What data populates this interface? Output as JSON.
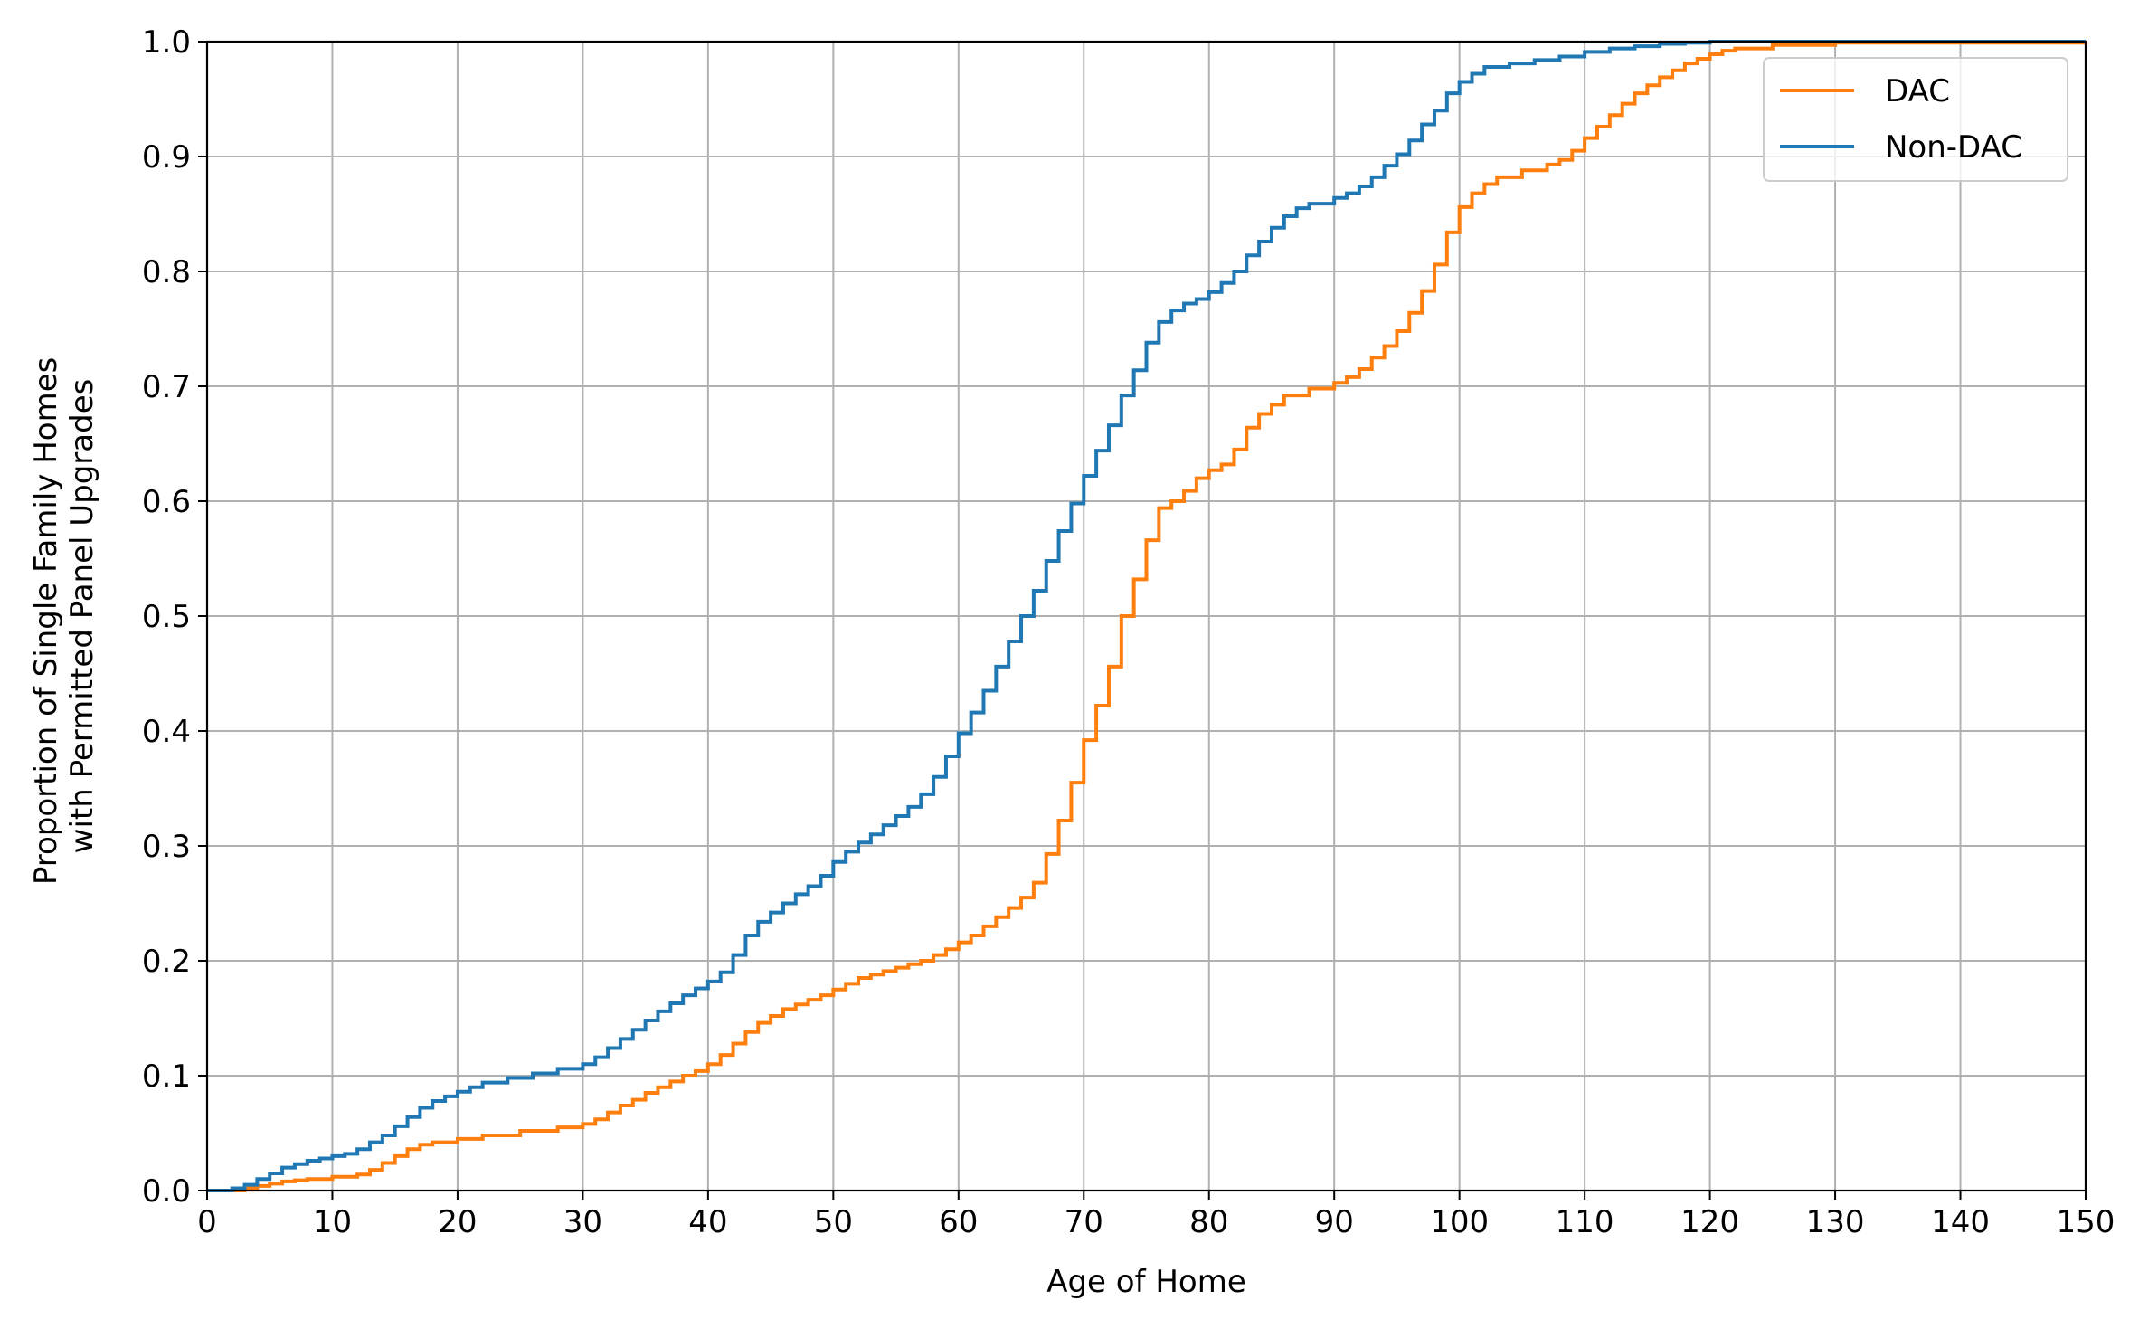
{
  "chart_data": {
    "type": "line",
    "step": true,
    "title": "",
    "xlabel": "Age of Home",
    "ylabel_lines": [
      "Proportion of Single Family Homes",
      "with Permitted Panel Upgrades"
    ],
    "xlim": [
      0,
      150
    ],
    "ylim": [
      0,
      1
    ],
    "xticks": [
      0,
      10,
      20,
      30,
      40,
      50,
      60,
      70,
      80,
      90,
      100,
      110,
      120,
      130,
      140,
      150
    ],
    "yticks": [
      0.0,
      0.1,
      0.2,
      0.3,
      0.4,
      0.5,
      0.6,
      0.7,
      0.8,
      0.9,
      1.0
    ],
    "xtick_labels": [
      "0",
      "10",
      "20",
      "30",
      "40",
      "50",
      "60",
      "70",
      "80",
      "90",
      "100",
      "110",
      "120",
      "130",
      "140",
      "150"
    ],
    "ytick_labels": [
      "0.0",
      "0.1",
      "0.2",
      "0.3",
      "0.4",
      "0.5",
      "0.6",
      "0.7",
      "0.8",
      "0.9",
      "1.0"
    ],
    "grid": true,
    "legend_position": "top-right",
    "series": [
      {
        "name": "DAC",
        "color": "#ff7f0e",
        "x": [
          0,
          3,
          4,
          5,
          6,
          7,
          8,
          10,
          12,
          13,
          14,
          15,
          16,
          17,
          18,
          20,
          22,
          25,
          28,
          30,
          31,
          32,
          33,
          34,
          35,
          36,
          37,
          38,
          39,
          40,
          41,
          42,
          43,
          44,
          45,
          46,
          47,
          48,
          49,
          50,
          51,
          52,
          53,
          54,
          55,
          56,
          57,
          58,
          59,
          60,
          61,
          62,
          63,
          64,
          65,
          66,
          67,
          68,
          69,
          70,
          71,
          72,
          73,
          74,
          75,
          76,
          77,
          78,
          79,
          80,
          81,
          82,
          83,
          84,
          85,
          86,
          88,
          90,
          91,
          92,
          93,
          94,
          95,
          96,
          97,
          98,
          99,
          100,
          101,
          102,
          103,
          105,
          107,
          108,
          109,
          110,
          111,
          112,
          113,
          114,
          115,
          116,
          117,
          118,
          119,
          120,
          121,
          122,
          125,
          130,
          150
        ],
        "y": [
          0.0,
          0.002,
          0.004,
          0.006,
          0.008,
          0.009,
          0.01,
          0.012,
          0.014,
          0.018,
          0.024,
          0.03,
          0.036,
          0.04,
          0.042,
          0.045,
          0.048,
          0.052,
          0.055,
          0.058,
          0.062,
          0.068,
          0.074,
          0.079,
          0.085,
          0.09,
          0.095,
          0.1,
          0.104,
          0.11,
          0.118,
          0.128,
          0.138,
          0.146,
          0.152,
          0.158,
          0.162,
          0.166,
          0.17,
          0.175,
          0.18,
          0.185,
          0.188,
          0.191,
          0.194,
          0.197,
          0.2,
          0.205,
          0.21,
          0.216,
          0.222,
          0.23,
          0.238,
          0.246,
          0.255,
          0.268,
          0.293,
          0.322,
          0.355,
          0.392,
          0.422,
          0.456,
          0.5,
          0.532,
          0.566,
          0.594,
          0.6,
          0.609,
          0.62,
          0.627,
          0.632,
          0.645,
          0.664,
          0.676,
          0.684,
          0.692,
          0.698,
          0.703,
          0.708,
          0.715,
          0.725,
          0.735,
          0.748,
          0.764,
          0.783,
          0.806,
          0.834,
          0.856,
          0.868,
          0.876,
          0.882,
          0.888,
          0.893,
          0.897,
          0.905,
          0.916,
          0.926,
          0.936,
          0.946,
          0.955,
          0.962,
          0.969,
          0.975,
          0.981,
          0.985,
          0.989,
          0.992,
          0.994,
          0.997,
          0.999,
          1.0
        ]
      },
      {
        "name": "Non-DAC",
        "color": "#1f77b4",
        "x": [
          0,
          2,
          3,
          4,
          5,
          6,
          7,
          8,
          9,
          10,
          11,
          12,
          13,
          14,
          15,
          16,
          17,
          18,
          19,
          20,
          21,
          22,
          24,
          26,
          28,
          30,
          31,
          32,
          33,
          34,
          35,
          36,
          37,
          38,
          39,
          40,
          41,
          42,
          43,
          44,
          45,
          46,
          47,
          48,
          49,
          50,
          51,
          52,
          53,
          54,
          55,
          56,
          57,
          58,
          59,
          60,
          61,
          62,
          63,
          64,
          65,
          66,
          67,
          68,
          69,
          70,
          71,
          72,
          73,
          74,
          75,
          76,
          77,
          78,
          79,
          80,
          81,
          82,
          83,
          84,
          85,
          86,
          87,
          88,
          90,
          91,
          92,
          93,
          94,
          95,
          96,
          97,
          98,
          99,
          100,
          101,
          102,
          104,
          106,
          108,
          110,
          112,
          114,
          116,
          118,
          120,
          125,
          150
        ],
        "y": [
          0.0,
          0.002,
          0.005,
          0.01,
          0.015,
          0.02,
          0.023,
          0.026,
          0.028,
          0.03,
          0.032,
          0.036,
          0.042,
          0.048,
          0.056,
          0.064,
          0.072,
          0.078,
          0.082,
          0.086,
          0.09,
          0.094,
          0.098,
          0.102,
          0.106,
          0.11,
          0.116,
          0.124,
          0.132,
          0.14,
          0.148,
          0.156,
          0.163,
          0.17,
          0.176,
          0.182,
          0.19,
          0.205,
          0.222,
          0.234,
          0.242,
          0.25,
          0.258,
          0.265,
          0.274,
          0.286,
          0.295,
          0.303,
          0.31,
          0.318,
          0.326,
          0.334,
          0.345,
          0.36,
          0.378,
          0.398,
          0.416,
          0.435,
          0.456,
          0.478,
          0.5,
          0.522,
          0.548,
          0.574,
          0.598,
          0.622,
          0.644,
          0.666,
          0.692,
          0.714,
          0.738,
          0.756,
          0.766,
          0.772,
          0.776,
          0.782,
          0.79,
          0.8,
          0.814,
          0.826,
          0.838,
          0.848,
          0.855,
          0.859,
          0.864,
          0.868,
          0.874,
          0.882,
          0.892,
          0.902,
          0.914,
          0.928,
          0.94,
          0.955,
          0.965,
          0.972,
          0.978,
          0.981,
          0.984,
          0.987,
          0.991,
          0.994,
          0.996,
          0.998,
          0.999,
          1.0,
          1.0,
          1.0
        ]
      }
    ]
  }
}
